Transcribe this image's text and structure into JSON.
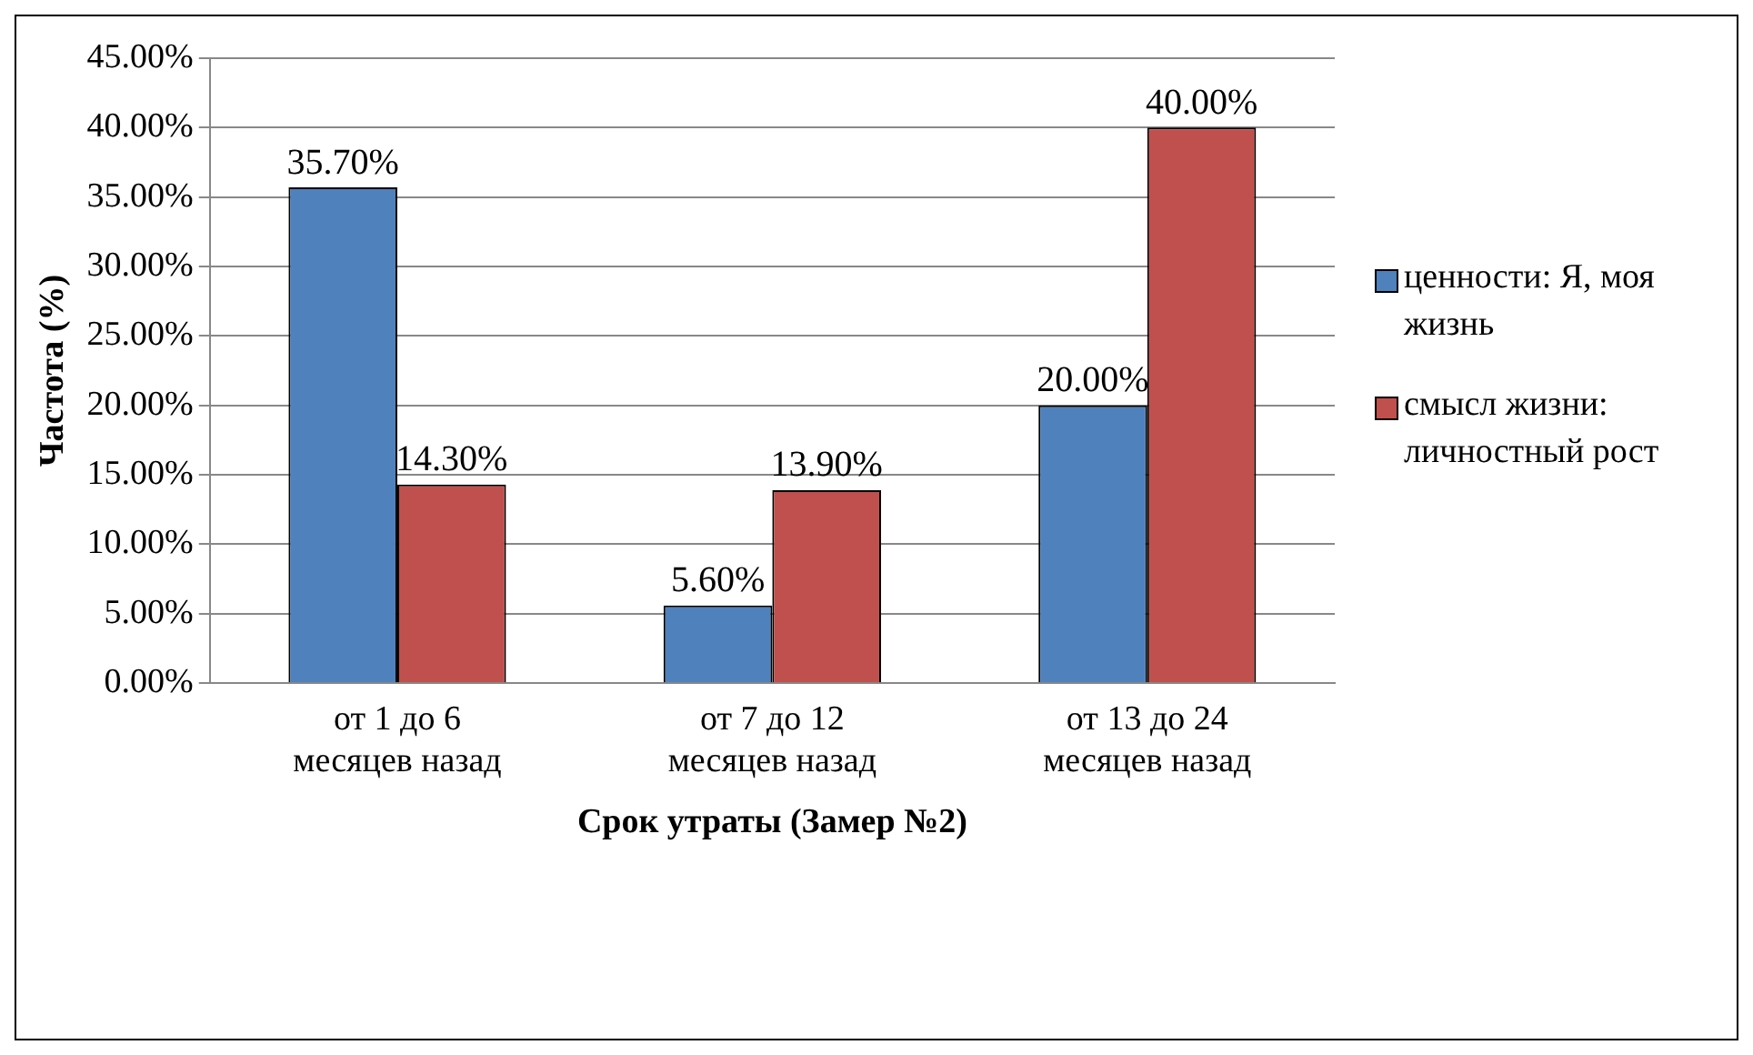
{
  "chart_data": {
    "type": "bar",
    "xlabel": "Срок утраты (Замер №2)",
    "ylabel": "Частота (%)",
    "categories": [
      "от 1 до 6 месяцев назад",
      "от 7 до 12 месяцев назад",
      "от 13 до 24 месяцев назад"
    ],
    "series": [
      {
        "name": "ценности: Я, моя жизнь",
        "color": "#4f81bd",
        "values": [
          35.7,
          5.6,
          20.0
        ],
        "value_labels": [
          "35.70%",
          "5.60%",
          "20.00%"
        ]
      },
      {
        "name": "смысл жизни: личностный рост",
        "color": "#c0504d",
        "values": [
          14.3,
          13.9,
          40.0
        ],
        "value_labels": [
          "14.30%",
          "13.90%",
          "40.00%"
        ]
      }
    ],
    "ylim": [
      0,
      45
    ],
    "yticks": [
      {
        "value": 0,
        "label": "0.00%"
      },
      {
        "value": 5,
        "label": "5.00%"
      },
      {
        "value": 10,
        "label": "10.00%"
      },
      {
        "value": 15,
        "label": "15.00%"
      },
      {
        "value": 20,
        "label": "20.00%"
      },
      {
        "value": 25,
        "label": "25.00%"
      },
      {
        "value": 30,
        "label": "30.00%"
      },
      {
        "value": 35,
        "label": "35.00%"
      },
      {
        "value": 40,
        "label": "40.00%"
      },
      {
        "value": 45,
        "label": "45.00%"
      }
    ],
    "grid": "y",
    "legend": "right"
  }
}
